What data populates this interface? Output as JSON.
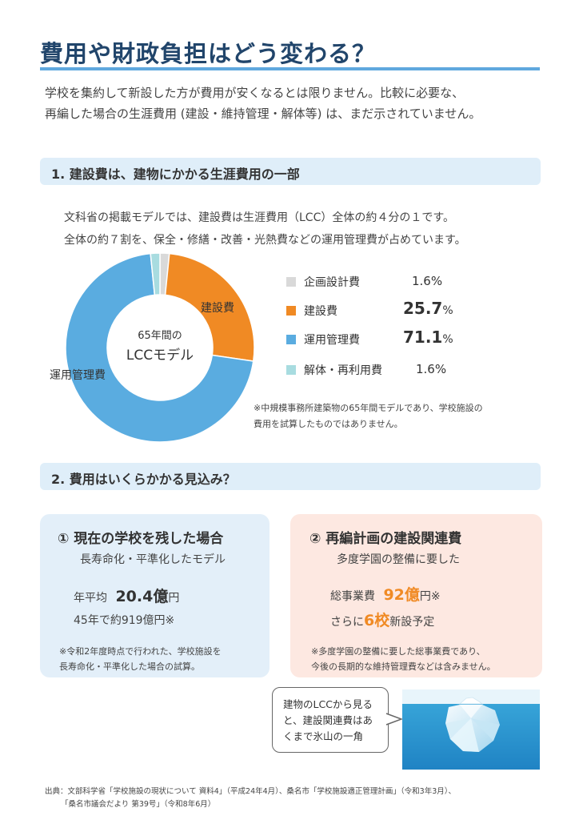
{
  "title": "費用や財政負担はどう変わる？",
  "intro": {
    "line1": "学校を集約して新設した方が費用が安くなるとは限りません。比較に必要な、",
    "line2": "再編した場合の生涯費用 (建設・維持管理・解体等) は、まだ示されていません。"
  },
  "section1": {
    "heading": "1. 建設費は、建物にかかる生涯費用の一部",
    "line1": "文科省の掲載モデルでは、建設費は生涯費用（LCC）全体の約４分の１です。",
    "line2": "全体の約７割を、保全・修繕・改善・光熱費などの運用管理費が占めています。"
  },
  "chart_data": {
    "type": "pie",
    "donut": true,
    "center_label": [
      "65年間の",
      "LCCモデル"
    ],
    "categories": [
      "企画設計費",
      "建設費",
      "運用管理費",
      "解体・再利用費"
    ],
    "values": [
      1.6,
      25.7,
      71.1,
      1.6
    ],
    "display_values": [
      "1.6%",
      "25.7",
      "71.1",
      "1.6%"
    ],
    "colors": [
      "#d9d9d9",
      "#f08a24",
      "#5aace0",
      "#a8dce0"
    ],
    "slice_labels": {
      "construction": "建設費",
      "operation": "運用管理費"
    },
    "legend_position": "right"
  },
  "legend_pct": "%",
  "section1_note": {
    "line1": "※中規模事務所建築物の65年間モデルであり、学校施設の",
    "line2": "費用を試算したものではありません。"
  },
  "section2": {
    "heading": "2. 費用はいくらかかる見込み？"
  },
  "card1": {
    "title": "① 現在の学校を残した場合",
    "subtitle": "長寿命化・平準化したモデル",
    "annual_prefix": "年平均",
    "annual_value": "20.4億",
    "annual_suffix": "円",
    "total_line": "45年で約919億円※",
    "note1": "※令和2年度時点で行われた、学校施設を",
    "note2": "長寿命化・平準化した場合の試算。",
    "bg": "#e3eff9"
  },
  "card2": {
    "title": "② 再編計画の建設関連費",
    "subtitle": "多度学園の整備に要した",
    "total_prefix": "総事業費",
    "total_value": "92億",
    "total_suffix": "円※",
    "new_prefix": "さらに",
    "new_value": "6校",
    "new_suffix": "新設予定",
    "note1": "※多度学園の整備に要した総事業費であり、",
    "note2": "今後の長期的な維持管理費などは含みません。",
    "bg": "#fde8e1"
  },
  "bubble": {
    "line1": "建物のLCCから見る",
    "line2": "と、建設関連費はあ",
    "line3": "くまで氷山の一角"
  },
  "source": {
    "line1": "出典：文部科学省「学校施設の現状について 資料4」（平成24年4月）、桑名市「学校施設適正管理計画」（令和3年3月）、",
    "line2": "「桑名市議会だより 第39号」（令和8年6月）"
  },
  "colors": {
    "title": "#21456b",
    "accent_blue": "#5fa8de",
    "orange": "#f08a24"
  }
}
